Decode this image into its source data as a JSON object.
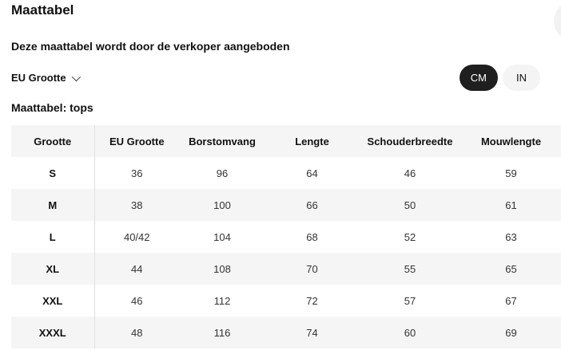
{
  "modal": {
    "title": "Maattabel",
    "subtitle": "Deze maattabel wordt door de verkoper aangeboden",
    "table_title": "Maattabel: tops"
  },
  "controls": {
    "dropdown_label": "EU Grootte",
    "chevron_icon": "chevron-down-icon",
    "units": [
      {
        "label": "CM",
        "selected": true
      },
      {
        "label": "IN",
        "selected": false
      }
    ]
  },
  "colors": {
    "selected_pill_bg": "#1f1f1f",
    "selected_pill_text": "#ffffff",
    "unselected_pill_bg": "#f4f4f4",
    "zebra_row_bg": "#f5f5f5",
    "header_row_bg": "#f5f5f5",
    "column_divider": "#e0e0e0",
    "text_primary": "#111111",
    "text_values": "#333333"
  },
  "sizeTable": {
    "columns": [
      "Grootte",
      "EU Grootte",
      "Borstomvang",
      "Lengte",
      "Schouderbreedte",
      "Mouwlengte"
    ],
    "rows": [
      {
        "size": "S",
        "values": [
          "36",
          "96",
          "64",
          "46",
          "59"
        ]
      },
      {
        "size": "M",
        "values": [
          "38",
          "100",
          "66",
          "50",
          "61"
        ]
      },
      {
        "size": "L",
        "values": [
          "40/42",
          "104",
          "68",
          "52",
          "63"
        ]
      },
      {
        "size": "XL",
        "values": [
          "44",
          "108",
          "70",
          "55",
          "65"
        ]
      },
      {
        "size": "XXL",
        "values": [
          "46",
          "112",
          "72",
          "57",
          "67"
        ]
      },
      {
        "size": "XXXL",
        "values": [
          "48",
          "116",
          "74",
          "60",
          "69"
        ]
      }
    ]
  }
}
